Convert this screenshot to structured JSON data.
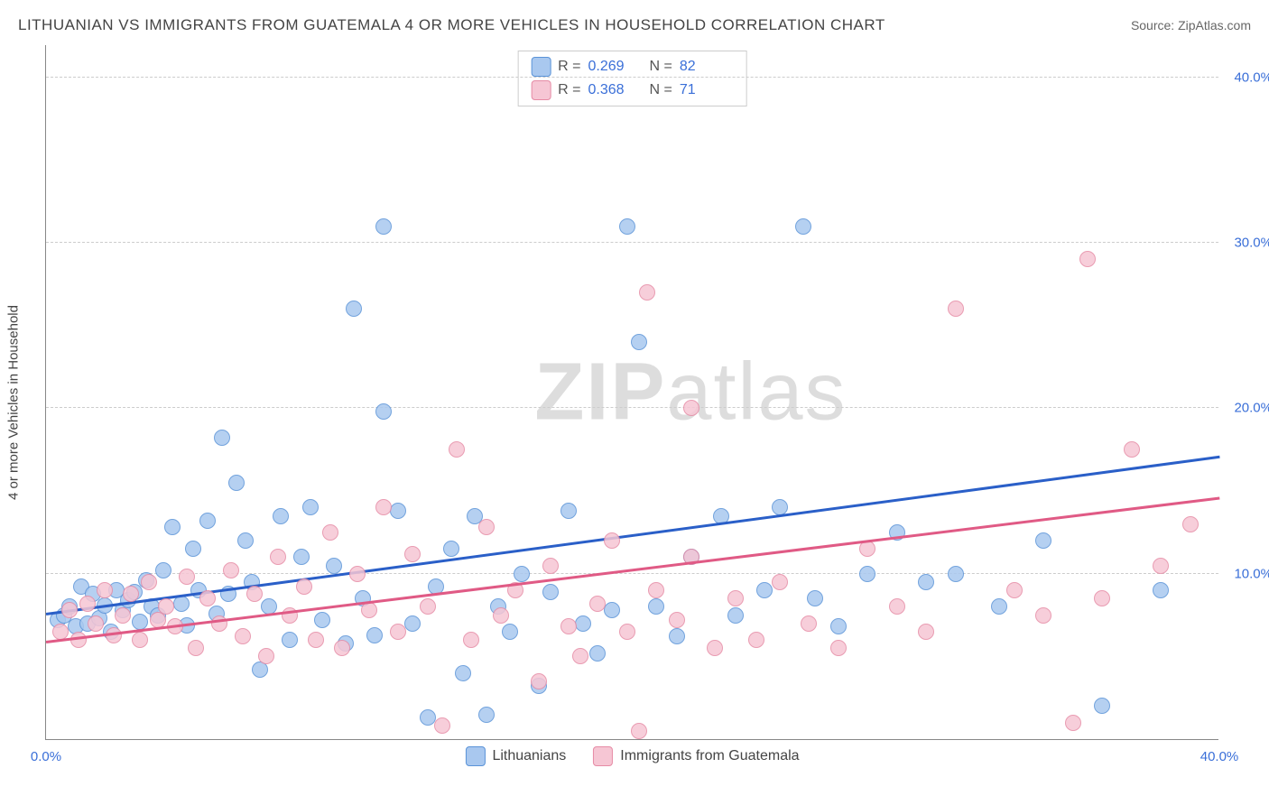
{
  "title": "LITHUANIAN VS IMMIGRANTS FROM GUATEMALA 4 OR MORE VEHICLES IN HOUSEHOLD CORRELATION CHART",
  "source": "Source: ZipAtlas.com",
  "ylabel": "4 or more Vehicles in Household",
  "watermark": {
    "bold": "ZIP",
    "rest": "atlas"
  },
  "chart": {
    "type": "scatter-with-trend",
    "xlim": [
      0,
      40
    ],
    "ylim": [
      0,
      42
    ],
    "x_ticks": [
      0,
      40
    ],
    "x_tick_labels": [
      "0.0%",
      "40.0%"
    ],
    "y_ticks": [
      10,
      20,
      30,
      40
    ],
    "y_tick_labels": [
      "10.0%",
      "20.0%",
      "30.0%",
      "40.0%"
    ],
    "grid_color": "#cccccc",
    "axis_color": "#888888",
    "background_color": "#ffffff",
    "marker_radius": 9,
    "marker_stroke_width": 1.5,
    "trend_line_width": 2.5,
    "series": [
      {
        "name": "Lithuanians",
        "fill_color": "#a9c8ef",
        "stroke_color": "#5a93d8",
        "trend_color": "#2a5fc8",
        "R": 0.269,
        "N": 82,
        "trend": {
          "x1": 0,
          "y1": 7.5,
          "x2": 40,
          "y2": 17.0
        },
        "points": [
          [
            0.4,
            7.2
          ],
          [
            0.6,
            7.5
          ],
          [
            0.8,
            8.0
          ],
          [
            1.0,
            6.8
          ],
          [
            1.2,
            9.2
          ],
          [
            1.4,
            7.0
          ],
          [
            1.6,
            8.8
          ],
          [
            1.8,
            7.3
          ],
          [
            2.0,
            8.1
          ],
          [
            2.2,
            6.5
          ],
          [
            2.4,
            9.0
          ],
          [
            2.6,
            7.8
          ],
          [
            2.8,
            8.4
          ],
          [
            3.0,
            8.9
          ],
          [
            3.2,
            7.1
          ],
          [
            3.4,
            9.6
          ],
          [
            3.6,
            8.0
          ],
          [
            3.8,
            7.5
          ],
          [
            4.0,
            10.2
          ],
          [
            4.3,
            12.8
          ],
          [
            4.6,
            8.2
          ],
          [
            4.8,
            6.9
          ],
          [
            5.0,
            11.5
          ],
          [
            5.2,
            9.0
          ],
          [
            5.5,
            13.2
          ],
          [
            5.8,
            7.6
          ],
          [
            6.0,
            18.2
          ],
          [
            6.2,
            8.8
          ],
          [
            6.5,
            15.5
          ],
          [
            6.8,
            12.0
          ],
          [
            7.0,
            9.5
          ],
          [
            7.3,
            4.2
          ],
          [
            7.6,
            8.0
          ],
          [
            8.0,
            13.5
          ],
          [
            8.3,
            6.0
          ],
          [
            8.7,
            11.0
          ],
          [
            9.0,
            14.0
          ],
          [
            9.4,
            7.2
          ],
          [
            9.8,
            10.5
          ],
          [
            10.2,
            5.8
          ],
          [
            10.5,
            26.0
          ],
          [
            10.8,
            8.5
          ],
          [
            11.2,
            6.3
          ],
          [
            11.5,
            19.8
          ],
          [
            11.5,
            31.0
          ],
          [
            12.0,
            13.8
          ],
          [
            12.5,
            7.0
          ],
          [
            13.0,
            1.3
          ],
          [
            13.3,
            9.2
          ],
          [
            13.8,
            11.5
          ],
          [
            14.2,
            4.0
          ],
          [
            14.6,
            13.5
          ],
          [
            15.0,
            1.5
          ],
          [
            15.4,
            8.0
          ],
          [
            15.8,
            6.5
          ],
          [
            16.2,
            10.0
          ],
          [
            16.8,
            3.2
          ],
          [
            17.2,
            8.9
          ],
          [
            17.8,
            13.8
          ],
          [
            18.3,
            7.0
          ],
          [
            18.8,
            5.2
          ],
          [
            19.3,
            7.8
          ],
          [
            19.8,
            31.0
          ],
          [
            20.2,
            24.0
          ],
          [
            20.8,
            8.0
          ],
          [
            21.5,
            6.2
          ],
          [
            22.0,
            11.0
          ],
          [
            23.0,
            13.5
          ],
          [
            23.5,
            7.5
          ],
          [
            24.5,
            9.0
          ],
          [
            25.0,
            14.0
          ],
          [
            25.8,
            31.0
          ],
          [
            26.2,
            8.5
          ],
          [
            27.0,
            6.8
          ],
          [
            28.0,
            10.0
          ],
          [
            29.0,
            12.5
          ],
          [
            30.0,
            9.5
          ],
          [
            31.0,
            10.0
          ],
          [
            32.5,
            8.0
          ],
          [
            34.0,
            12.0
          ],
          [
            36.0,
            2.0
          ],
          [
            38.0,
            9.0
          ]
        ]
      },
      {
        "name": "Immigrants from Guatemala",
        "fill_color": "#f6c6d4",
        "stroke_color": "#e68ba5",
        "trend_color": "#e05a85",
        "R": 0.368,
        "N": 71,
        "trend": {
          "x1": 0,
          "y1": 5.8,
          "x2": 40,
          "y2": 14.5
        },
        "points": [
          [
            0.5,
            6.5
          ],
          [
            0.8,
            7.8
          ],
          [
            1.1,
            6.0
          ],
          [
            1.4,
            8.2
          ],
          [
            1.7,
            7.0
          ],
          [
            2.0,
            9.0
          ],
          [
            2.3,
            6.3
          ],
          [
            2.6,
            7.5
          ],
          [
            2.9,
            8.8
          ],
          [
            3.2,
            6.0
          ],
          [
            3.5,
            9.5
          ],
          [
            3.8,
            7.2
          ],
          [
            4.1,
            8.0
          ],
          [
            4.4,
            6.8
          ],
          [
            4.8,
            9.8
          ],
          [
            5.1,
            5.5
          ],
          [
            5.5,
            8.5
          ],
          [
            5.9,
            7.0
          ],
          [
            6.3,
            10.2
          ],
          [
            6.7,
            6.2
          ],
          [
            7.1,
            8.8
          ],
          [
            7.5,
            5.0
          ],
          [
            7.9,
            11.0
          ],
          [
            8.3,
            7.5
          ],
          [
            8.8,
            9.2
          ],
          [
            9.2,
            6.0
          ],
          [
            9.7,
            12.5
          ],
          [
            10.1,
            5.5
          ],
          [
            10.6,
            10.0
          ],
          [
            11.0,
            7.8
          ],
          [
            11.5,
            14.0
          ],
          [
            12.0,
            6.5
          ],
          [
            12.5,
            11.2
          ],
          [
            13.0,
            8.0
          ],
          [
            13.5,
            0.8
          ],
          [
            14.0,
            17.5
          ],
          [
            14.5,
            6.0
          ],
          [
            15.0,
            12.8
          ],
          [
            15.5,
            7.5
          ],
          [
            16.0,
            9.0
          ],
          [
            16.8,
            3.5
          ],
          [
            17.2,
            10.5
          ],
          [
            17.8,
            6.8
          ],
          [
            18.2,
            5.0
          ],
          [
            18.8,
            8.2
          ],
          [
            19.3,
            12.0
          ],
          [
            19.8,
            6.5
          ],
          [
            20.2,
            0.5
          ],
          [
            20.5,
            27.0
          ],
          [
            20.8,
            9.0
          ],
          [
            21.5,
            7.2
          ],
          [
            22.0,
            11.0
          ],
          [
            22.0,
            20.0
          ],
          [
            22.8,
            5.5
          ],
          [
            23.5,
            8.5
          ],
          [
            24.2,
            6.0
          ],
          [
            25.0,
            9.5
          ],
          [
            26.0,
            7.0
          ],
          [
            27.0,
            5.5
          ],
          [
            28.0,
            11.5
          ],
          [
            29.0,
            8.0
          ],
          [
            30.0,
            6.5
          ],
          [
            31.0,
            26.0
          ],
          [
            33.0,
            9.0
          ],
          [
            34.0,
            7.5
          ],
          [
            35.0,
            1.0
          ],
          [
            35.5,
            29.0
          ],
          [
            36.0,
            8.5
          ],
          [
            37.0,
            17.5
          ],
          [
            38.0,
            10.5
          ],
          [
            39.0,
            13.0
          ]
        ]
      }
    ]
  },
  "stats_legend": {
    "r_label": "R =",
    "n_label": "N =",
    "rows": [
      {
        "swatch_fill": "#a9c8ef",
        "swatch_stroke": "#5a93d8",
        "r": "0.269",
        "n": "82"
      },
      {
        "swatch_fill": "#f6c6d4",
        "swatch_stroke": "#e68ba5",
        "r": "0.368",
        "n": "71"
      }
    ]
  },
  "bottom_legend": {
    "items": [
      {
        "swatch_fill": "#a9c8ef",
        "swatch_stroke": "#5a93d8",
        "label": "Lithuanians"
      },
      {
        "swatch_fill": "#f6c6d4",
        "swatch_stroke": "#e68ba5",
        "label": "Immigrants from Guatemala"
      }
    ]
  }
}
